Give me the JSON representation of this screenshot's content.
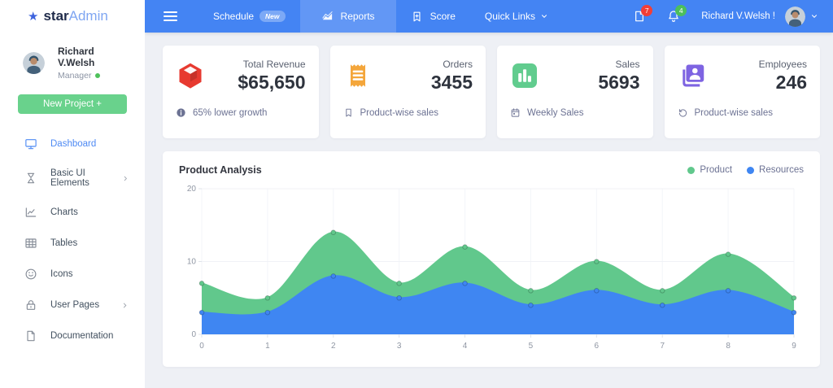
{
  "colors": {
    "primary": "#4484f3",
    "success": "#4cbf5c",
    "danger": "#f23e36"
  },
  "brand": {
    "star": "★",
    "bold": "star",
    "light": "Admin"
  },
  "sidebar": {
    "profile": {
      "name": "Richard V.Welsh",
      "role": "Manager"
    },
    "new_project_label": "New Project +",
    "items": [
      {
        "label": "Dashboard",
        "icon": "monitor",
        "active": true,
        "chevron": false
      },
      {
        "label": "Basic UI Elements",
        "icon": "hourglass",
        "active": false,
        "chevron": true
      },
      {
        "label": "Charts",
        "icon": "chart-line",
        "active": false,
        "chevron": false
      },
      {
        "label": "Tables",
        "icon": "table",
        "active": false,
        "chevron": false
      },
      {
        "label": "Icons",
        "icon": "smiley",
        "active": false,
        "chevron": false
      },
      {
        "label": "User Pages",
        "icon": "lock",
        "active": false,
        "chevron": true
      },
      {
        "label": "Documentation",
        "icon": "file",
        "active": false,
        "chevron": false
      }
    ]
  },
  "navbar": {
    "schedule_label": "Schedule",
    "schedule_badge": "New",
    "reports_label": "Reports",
    "score_label": "Score",
    "quick_links_label": "Quick Links",
    "file_badge_count": "7",
    "bell_badge_count": "4",
    "user_greeting": "Richard V.Welsh !"
  },
  "cards": [
    {
      "title": "Total Revenue",
      "value": "$65,650",
      "footer": "65% lower growth",
      "icon": "cube",
      "icon_color": "#e73a30",
      "footer_icon": "info"
    },
    {
      "title": "Orders",
      "value": "3455",
      "footer": "Product-wise sales",
      "icon": "receipt",
      "icon_color": "#f4a63b",
      "footer_icon": "bookmark"
    },
    {
      "title": "Sales",
      "value": "5693",
      "footer": "Weekly Sales",
      "icon": "bar-chart",
      "icon_color": "#61cc8e",
      "footer_icon": "calendar"
    },
    {
      "title": "Employees",
      "value": "246",
      "footer": "Product-wise sales",
      "icon": "id-card",
      "icon_color": "#7e64e2",
      "footer_icon": "history"
    }
  ],
  "chart_data": {
    "type": "area",
    "title": "Product Analysis",
    "x": [
      0,
      1,
      2,
      3,
      4,
      5,
      6,
      7,
      8,
      9
    ],
    "series": [
      {
        "name": "Product",
        "color": "#61c88c",
        "values": [
          7,
          5,
          14,
          7,
          12,
          6,
          10,
          6,
          11,
          5
        ]
      },
      {
        "name": "Resources",
        "color": "#3f86f2",
        "values": [
          3,
          3,
          8,
          5,
          7,
          4,
          6,
          4,
          6,
          3
        ]
      }
    ],
    "ylim": [
      0,
      20
    ],
    "yticks": [
      0,
      10,
      20
    ],
    "grid": true,
    "legend_position": "top-right"
  }
}
